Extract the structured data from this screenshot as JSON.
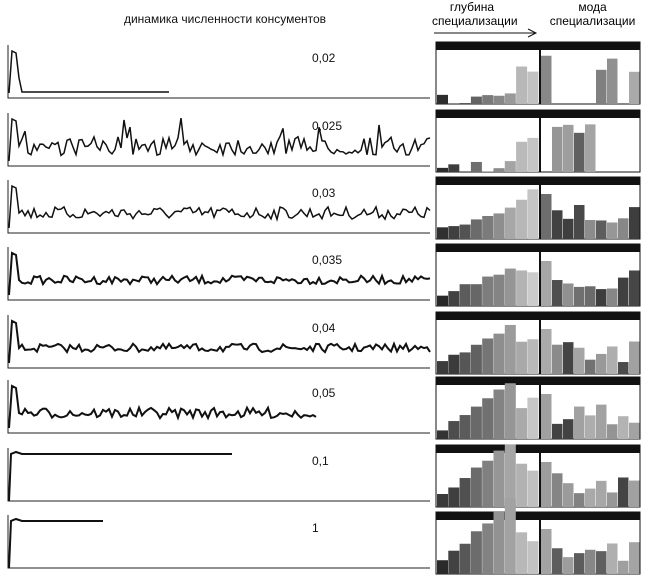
{
  "header": {
    "title": "динамика численности консументов",
    "depth": "глубина специализации",
    "mode": "мода специализации"
  },
  "panels": [
    {
      "label": "0,02"
    },
    {
      "label": "0,025"
    },
    {
      "label": "0,03"
    },
    {
      "label": "0,035"
    },
    {
      "label": "0,04"
    },
    {
      "label": "0,05"
    },
    {
      "label": "0,1"
    },
    {
      "label": "1"
    }
  ]
}
